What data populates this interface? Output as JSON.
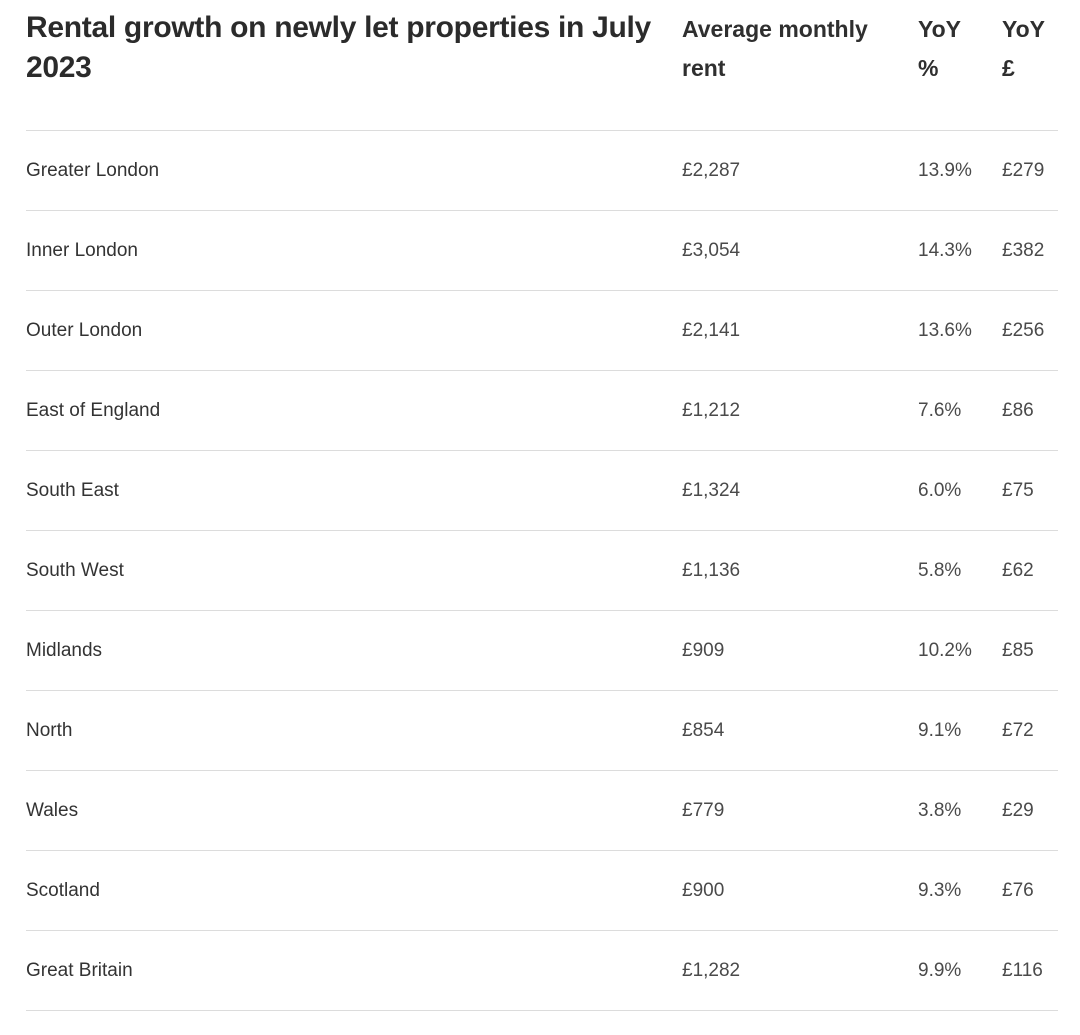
{
  "table": {
    "title": "Rental growth on newly let properties in July 2023",
    "headers": {
      "rent": [
        "Average monthly",
        "rent"
      ],
      "yoy_pct": [
        "YoY",
        "%"
      ],
      "yoy_gbp": [
        "YoY",
        "£"
      ]
    },
    "rows": [
      {
        "region": "Greater London",
        "rent": "£2,287",
        "yoy_pct": "13.9%",
        "yoy_gbp": "£279"
      },
      {
        "region": "Inner London",
        "rent": "£3,054",
        "yoy_pct": "14.3%",
        "yoy_gbp": "£382"
      },
      {
        "region": "Outer London",
        "rent": "£2,141",
        "yoy_pct": "13.6%",
        "yoy_gbp": "£256"
      },
      {
        "region": "East of England",
        "rent": "£1,212",
        "yoy_pct": "7.6%",
        "yoy_gbp": "£86"
      },
      {
        "region": "South East",
        "rent": "£1,324",
        "yoy_pct": "6.0%",
        "yoy_gbp": "£75"
      },
      {
        "region": "South West",
        "rent": "£1,136",
        "yoy_pct": "5.8%",
        "yoy_gbp": "£62"
      },
      {
        "region": "Midlands",
        "rent": "£909",
        "yoy_pct": "10.2%",
        "yoy_gbp": "£85"
      },
      {
        "region": "North",
        "rent": "£854",
        "yoy_pct": "9.1%",
        "yoy_gbp": "£72"
      },
      {
        "region": "Wales",
        "rent": "£779",
        "yoy_pct": "3.8%",
        "yoy_gbp": "£29"
      },
      {
        "region": "Scotland",
        "rent": "£900",
        "yoy_pct": "9.3%",
        "yoy_gbp": "£76"
      },
      {
        "region": "Great Britain",
        "rent": "£1,282",
        "yoy_pct": "9.9%",
        "yoy_gbp": "£116"
      }
    ]
  }
}
